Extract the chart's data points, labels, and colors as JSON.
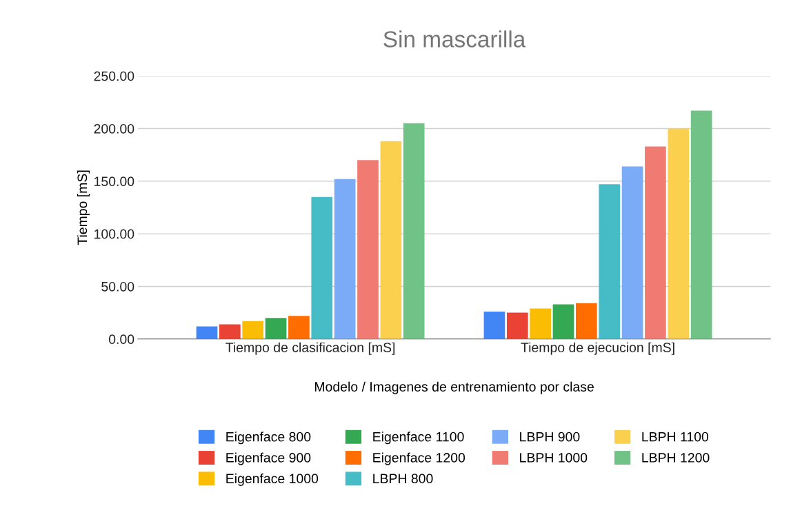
{
  "chart_data": {
    "type": "bar",
    "title": "Sin mascarilla",
    "xlabel": "Modelo / Imagenes de entrenamiento por clase",
    "ylabel": "Tiempo [mS]",
    "categories": [
      "Tiempo de clasificacion [mS]",
      "Tiempo de ejecucion [mS]"
    ],
    "series": [
      {
        "name": "Eigenface 800",
        "color": "#4285f4",
        "values": [
          12,
          26
        ]
      },
      {
        "name": "Eigenface 900",
        "color": "#ea4335",
        "values": [
          14,
          25
        ]
      },
      {
        "name": "Eigenface 1000",
        "color": "#fbbc04",
        "values": [
          17,
          29
        ]
      },
      {
        "name": "Eigenface 1100",
        "color": "#34a853",
        "values": [
          20,
          33
        ]
      },
      {
        "name": "Eigenface 1200",
        "color": "#ff6d01",
        "values": [
          22,
          34
        ]
      },
      {
        "name": "LBPH 800",
        "color": "#46bdc6",
        "values": [
          135,
          147
        ]
      },
      {
        "name": "LBPH 900",
        "color": "#7baaf7",
        "values": [
          152,
          164
        ]
      },
      {
        "name": "LBPH 1000",
        "color": "#f07b72",
        "values": [
          170,
          183
        ]
      },
      {
        "name": "LBPH 1100",
        "color": "#fcd04f",
        "values": [
          188,
          200
        ]
      },
      {
        "name": "LBPH 1200",
        "color": "#71c287",
        "values": [
          205,
          217
        ]
      }
    ],
    "ylim": [
      0,
      250
    ],
    "yticks": [
      {
        "value": 0,
        "label": "0.00"
      },
      {
        "value": 50,
        "label": "50.00"
      },
      {
        "value": 100,
        "label": "100.00"
      },
      {
        "value": 150,
        "label": "150.00"
      },
      {
        "value": 200,
        "label": "200.00"
      },
      {
        "value": 250,
        "label": "250.00"
      }
    ],
    "grid": "y",
    "legend": "bottom"
  }
}
